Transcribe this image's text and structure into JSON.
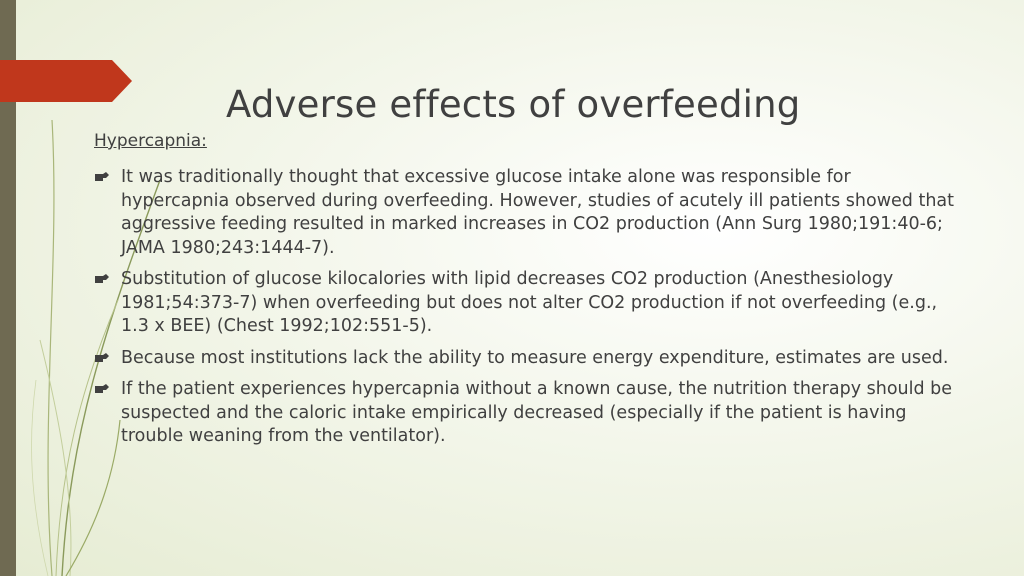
{
  "slide": {
    "title": "Adverse effects of overfeeding",
    "section_heading": "Hypercapnia:",
    "bullets": [
      "It was traditionally thought that excessive glucose intake alone was responsible for hypercapnia observed during overfeeding. However, studies of acutely ill patients showed that aggressive feeding resulted in marked increases in CO2 production (Ann Surg 1980;191:40-6; JAMA 1980;243:1444-7).",
      "Substitution of glucose kilocalories with lipid decreases CO2 production (Anesthesiology 1981;54:373-7) when overfeeding but does not alter CO2 production if not overfeeding (e.g., 1.3 x BEE) (Chest 1992;102:551-5).",
      "Because most institutions lack the ability to measure energy expenditure, estimates are used.",
      "If the patient experiences hypercapnia without a known cause, the nutrition therapy should be suspected and the caloric intake empirically decreased (especially if the patient is having trouble weaning from the ventilator)."
    ]
  },
  "colors": {
    "accent_red": "#c0371c",
    "left_bar": "#6f6a52",
    "text": "#404040",
    "decor_line": "#8a9a5b"
  },
  "icons": {
    "bullet": "pointing-hand-icon"
  }
}
